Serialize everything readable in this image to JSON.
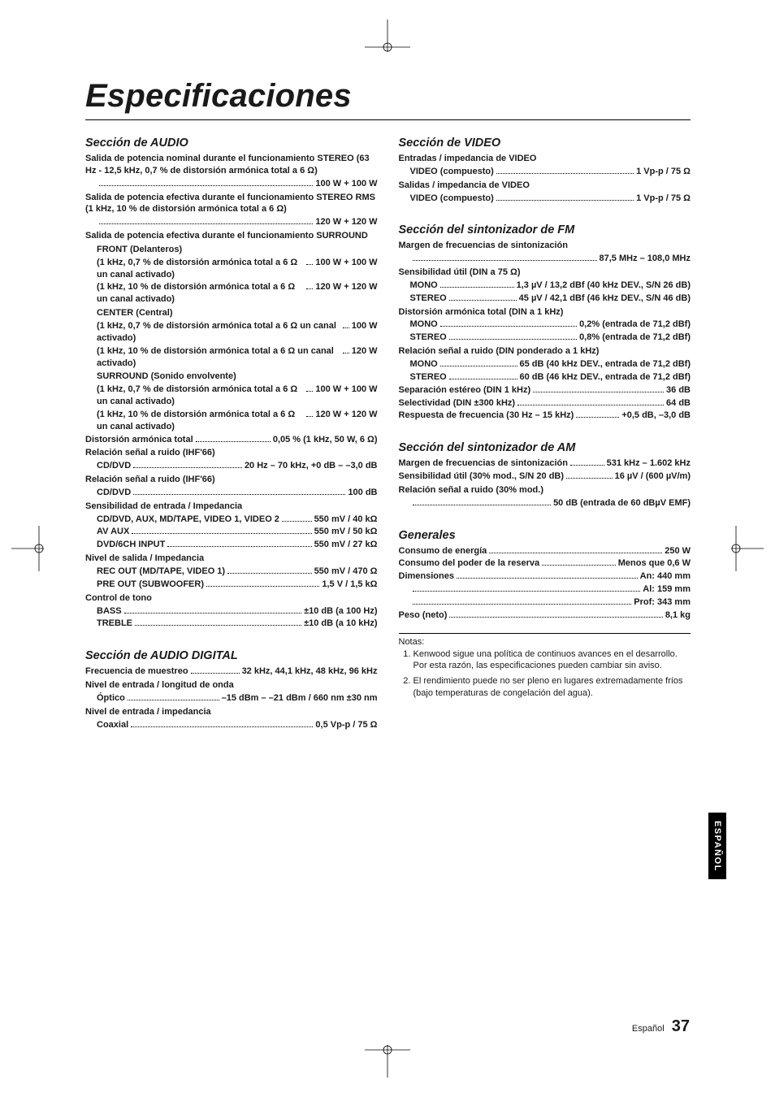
{
  "title": "Especificaciones",
  "sideTab": "ESPAÑOL",
  "pageLabel": "Español",
  "pageNumber": "37",
  "colors": {
    "ink": "#1a1a1a",
    "tab_bg": "#000000",
    "tab_fg": "#ffffff",
    "page_bg": "#ffffff"
  },
  "leftSections": [
    {
      "title": "Sección de AUDIO",
      "lines": [
        {
          "label": "Salida de potencia nominal durante el funcionamiento STEREO (63 Hz - 12,5 kHz, 0,7 % de distorsión armónica total a 6 Ω)",
          "value": "100 W + 100 W",
          "indent": 0,
          "valueIndent": 1
        },
        {
          "label": "Salida de potencia efectiva durante el funcionamiento STEREO RMS (1 kHz, 10 % de distorsión armónica total a 6 Ω)",
          "value": "120 W + 120 W",
          "indent": 0,
          "valueIndent": 1
        },
        {
          "label": "Salida de potencia efectiva durante el funcionamiento SURROUND",
          "value": "",
          "indent": 0,
          "noval": true
        },
        {
          "label": "FRONT (Delanteros)",
          "value": "",
          "indent": 1,
          "noval": true
        },
        {
          "label": "(1 kHz, 0,7 % de distorsión armónica total a 6 Ω un canal activado)",
          "value": "100 W + 100 W",
          "indent": 1
        },
        {
          "label": "(1 kHz, 10 % de distorsión armónica total a 6 Ω un canal activado)",
          "value": "120 W + 120 W",
          "indent": 1
        },
        {
          "label": "CENTER (Central)",
          "value": "",
          "indent": 1,
          "noval": true
        },
        {
          "label": "(1 kHz, 0,7 % de distorsión armónica total a 6 Ω un canal activado)",
          "value": "100 W",
          "indent": 1
        },
        {
          "label": "(1 kHz, 10 % de distorsión armónica total a 6 Ω un canal activado)",
          "value": "120 W",
          "indent": 1
        },
        {
          "label": "SURROUND (Sonido envolvente)",
          "value": "",
          "indent": 1,
          "noval": true
        },
        {
          "label": "(1 kHz, 0,7 % de distorsión armónica total a 6 Ω un canal activado)",
          "value": "100 W + 100 W",
          "indent": 1
        },
        {
          "label": "(1 kHz, 10 % de distorsión armónica total a 6 Ω un canal activado)",
          "value": "120 W + 120 W",
          "indent": 1
        },
        {
          "label": "Distorsión armónica total",
          "value": "0,05 % (1 kHz, 50 W, 6 Ω)",
          "indent": 0
        },
        {
          "label": "Relación señal a ruido (IHF'66)",
          "value": "",
          "indent": 0,
          "noval": true
        },
        {
          "label": "CD/DVD",
          "value": "20 Hz – 70 kHz, +0 dB – –3,0 dB",
          "indent": 1
        },
        {
          "label": "Relación señal a ruido (IHF'66)",
          "value": "",
          "indent": 0,
          "noval": true
        },
        {
          "label": "CD/DVD",
          "value": "100 dB",
          "indent": 1
        },
        {
          "label": "Sensibilidad de entrada / Impedancia",
          "value": "",
          "indent": 0,
          "noval": true
        },
        {
          "label": "CD/DVD, AUX, MD/TAPE, VIDEO 1, VIDEO 2",
          "value": "550 mV / 40 kΩ",
          "indent": 1
        },
        {
          "label": "AV AUX",
          "value": "550 mV / 50 kΩ",
          "indent": 1
        },
        {
          "label": "DVD/6CH INPUT",
          "value": "550 mV / 27 kΩ",
          "indent": 1
        },
        {
          "label": "Nivel de salida / Impedancia",
          "value": "",
          "indent": 0,
          "noval": true
        },
        {
          "label": "REC OUT (MD/TAPE, VIDEO 1)",
          "value": "550 mV / 470 Ω",
          "indent": 1
        },
        {
          "label": "PRE OUT (SUBWOOFER)",
          "value": "1,5 V / 1,5 kΩ",
          "indent": 1
        },
        {
          "label": "Control de tono",
          "value": "",
          "indent": 0,
          "noval": true
        },
        {
          "label": "BASS",
          "value": "±10 dB (a 100 Hz)",
          "indent": 1
        },
        {
          "label": "TREBLE",
          "value": "±10 dB (a 10 kHz)",
          "indent": 1
        }
      ]
    },
    {
      "title": "Sección de AUDIO DIGITAL",
      "lines": [
        {
          "label": "Frecuencia de muestreo",
          "value": "32 kHz, 44,1 kHz, 48 kHz, 96 kHz",
          "indent": 0
        },
        {
          "label": "Nivel de entrada / longitud de onda",
          "value": "",
          "indent": 0,
          "noval": true
        },
        {
          "label": "Óptico",
          "value": "–15 dBm – –21 dBm / 660 nm ±30 nm",
          "indent": 1
        },
        {
          "label": "Nivel de entrada / impedancia",
          "value": "",
          "indent": 0,
          "noval": true
        },
        {
          "label": "Coaxial",
          "value": "0,5 Vp-p / 75 Ω",
          "indent": 1
        }
      ]
    }
  ],
  "rightSections": [
    {
      "title": "Sección de VIDEO",
      "lines": [
        {
          "label": "Entradas / impedancia de VIDEO",
          "value": "",
          "indent": 0,
          "noval": true
        },
        {
          "label": "VIDEO (compuesto)",
          "value": "1 Vp-p / 75 Ω",
          "indent": 1
        },
        {
          "label": "Salidas / impedancia de VIDEO",
          "value": "",
          "indent": 0,
          "noval": true
        },
        {
          "label": "VIDEO (compuesto)",
          "value": "1 Vp-p / 75 Ω",
          "indent": 1
        }
      ]
    },
    {
      "title": "Sección del sintonizador de FM",
      "lines": [
        {
          "label": "Margen de frecuencias de sintonización",
          "value": "87,5 MHz – 108,0 MHz",
          "indent": 0,
          "valueIndent": 1
        },
        {
          "label": "Sensibilidad útil (DIN a 75 Ω)",
          "value": "",
          "indent": 0,
          "noval": true
        },
        {
          "label": "MONO",
          "value": "1,3 µV / 13,2 dBf (40 kHz DEV., S/N 26 dB)",
          "indent": 1
        },
        {
          "label": "STEREO",
          "value": "45 µV / 42,1 dBf (46 kHz DEV., S/N 46 dB)",
          "indent": 1
        },
        {
          "label": "Distorsión armónica total (DIN a 1 kHz)",
          "value": "",
          "indent": 0,
          "noval": true
        },
        {
          "label": "MONO",
          "value": "0,2% (entrada de 71,2 dBf)",
          "indent": 1
        },
        {
          "label": "STEREO",
          "value": "0,8% (entrada de 71,2 dBf)",
          "indent": 1
        },
        {
          "label": "Relación señal a ruido (DIN ponderado a 1 kHz)",
          "value": "",
          "indent": 0,
          "noval": true
        },
        {
          "label": "MONO",
          "value": "65 dB (40 kHz DEV., entrada de 71,2 dBf)",
          "indent": 1
        },
        {
          "label": "STEREO",
          "value": "60 dB (46 kHz DEV., entrada de 71,2 dBf)",
          "indent": 1
        },
        {
          "label": "Separación estéreo (DIN 1 kHz)",
          "value": "36 dB",
          "indent": 0
        },
        {
          "label": "Selectividad (DIN ±300 kHz)",
          "value": "64 dB",
          "indent": 0
        },
        {
          "label": "Respuesta de frecuencia (30 Hz – 15 kHz)",
          "value": "+0,5 dB,  –3,0 dB",
          "indent": 0
        }
      ]
    },
    {
      "title": "Sección del sintonizador de AM",
      "lines": [
        {
          "label": "Margen de frecuencias de sintonización",
          "value": "531 kHz – 1.602 kHz",
          "indent": 0
        },
        {
          "label": "Sensibilidad útil (30% mod., S/N 20 dB)",
          "value": "16 µV / (600 µV/m)",
          "indent": 0
        },
        {
          "label": "Relación señal a ruido (30% mod.)",
          "value": "50 dB (entrada de 60 dBµV EMF)",
          "indent": 0,
          "valueIndent": 1
        }
      ]
    },
    {
      "title": "Generales",
      "lines": [
        {
          "label": "Consumo de energía",
          "value": "250 W",
          "indent": 0
        },
        {
          "label": "Consumo del poder de la reserva",
          "value": "Menos que 0,6 W",
          "indent": 0
        },
        {
          "label": "Dimensiones",
          "value": "An: 440 mm",
          "indent": 0
        },
        {
          "label": "",
          "value": "Al: 159 mm",
          "indent": 1
        },
        {
          "label": "",
          "value": "Prof: 343 mm",
          "indent": 1
        },
        {
          "label": "Peso (neto)",
          "value": "8,1 kg",
          "indent": 0
        }
      ]
    }
  ],
  "notesTitle": "Notas:",
  "notes": [
    "Kenwood sigue una política de continuos avances en el desarrollo.  Por esta razón, las especificaciones pueden cambiar sin aviso.",
    "El rendimiento puede no ser pleno en lugares extremadamente fríos (bajo temperaturas de congelación del agua)."
  ]
}
